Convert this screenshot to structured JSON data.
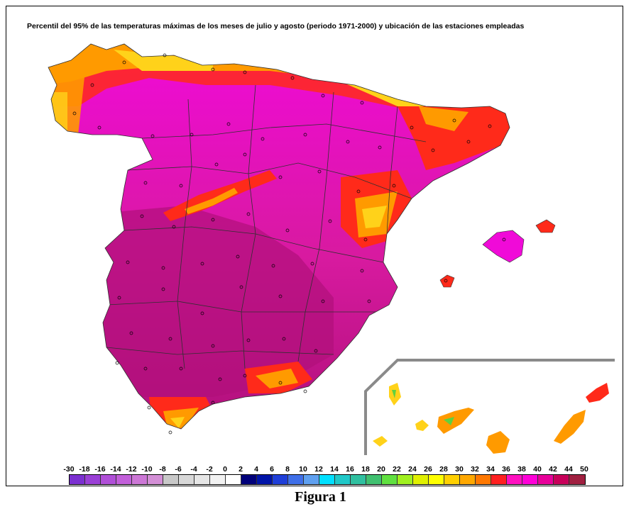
{
  "title": "Percentil del 95% de las temperaturas máximas de los meses de julio y agosto (periodo 1971-2000) y ubicación de las estaciones empleadas",
  "caption": "Figura 1",
  "legend": {
    "labels": [
      "-30",
      "-18",
      "-16",
      "-14",
      "-12",
      "-10",
      "-8",
      "-6",
      "-4",
      "-2",
      "0",
      "2",
      "4",
      "6",
      "8",
      "10",
      "12",
      "14",
      "16",
      "18",
      "20",
      "22",
      "24",
      "26",
      "28",
      "30",
      "32",
      "34",
      "36",
      "38",
      "40",
      "42",
      "44",
      "50"
    ],
    "colors": [
      "#7b2fd0",
      "#9a3fd6",
      "#b04fd8",
      "#c25fda",
      "#cc77d6",
      "#d38fd6",
      "#c8c8c8",
      "#d8d8d8",
      "#e6e6e6",
      "#f2f2f2",
      "#ffffff",
      "#00007a",
      "#0014a8",
      "#1f3fd8",
      "#3f6fe8",
      "#5fa0f0",
      "#00e0ff",
      "#20c8c8",
      "#30c0a0",
      "#40c070",
      "#60e040",
      "#a0f020",
      "#e0f000",
      "#ffff00",
      "#ffd000",
      "#ffa800",
      "#ff7800",
      "#ff2020",
      "#ff10c0",
      "#ff00d8",
      "#e8009a",
      "#c8005a",
      "#a02040"
    ],
    "labels_colors_note": ""
  },
  "colors": {
    "deep_magenta": "#b0107a",
    "magenta": "#d81aa0",
    "pink": "#f00ad8",
    "red": "#ff2a1a",
    "orange": "#ff9a00",
    "yellow": "#ffd21a",
    "green": "#60d040",
    "inset_line": "#8a8a8a",
    "border_line": "#303030"
  }
}
